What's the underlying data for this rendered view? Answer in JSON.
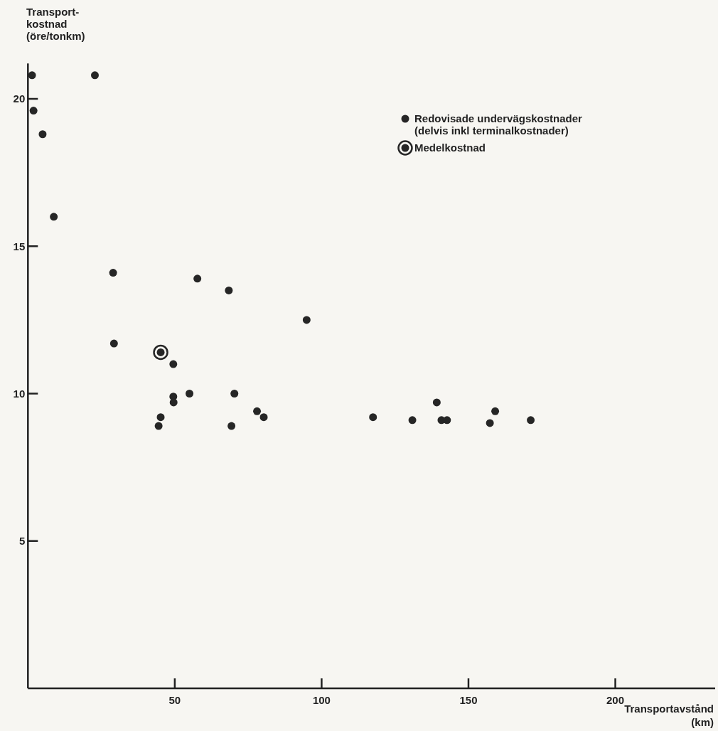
{
  "chart_data": {
    "type": "scatter",
    "ylabel": "Transport-\nkostnad\n(öre/tonkm)",
    "xlabel": "Transportavstånd\n(km)",
    "xlim": [
      0,
      234
    ],
    "ylim": [
      0,
      21.2
    ],
    "xticks": [
      50,
      100,
      150,
      200
    ],
    "yticks": [
      5,
      10,
      15,
      20
    ],
    "grid": false,
    "legend": "top right",
    "marker": "circle",
    "series": [
      {
        "name": "Redovisade undervägskostnader\n(delvis inkl terminalkostnader)",
        "color": "#262626",
        "x": [
          1.4,
          22.8,
          1.9,
          5.0,
          8.8,
          29.0,
          57.7,
          68.4,
          94.9,
          29.3,
          49.5,
          49.5,
          55.0,
          70.3,
          49.6,
          78.0,
          80.3,
          45.2,
          44.5,
          69.3,
          117.5,
          130.9,
          139.2,
          140.8,
          142.7,
          157.3,
          159.1,
          171.2
        ],
        "values": [
          20.8,
          20.8,
          19.6,
          18.8,
          16.0,
          14.1,
          13.9,
          13.5,
          12.5,
          11.7,
          11.0,
          9.9,
          10.0,
          10.0,
          9.7,
          9.4,
          9.2,
          9.2,
          8.9,
          8.9,
          9.2,
          9.1,
          9.7,
          9.1,
          9.1,
          9.0,
          9.4,
          9.1
        ]
      },
      {
        "name": "Medelkostnad",
        "color": "#262626",
        "x": [
          45.2
        ],
        "values": [
          11.4
        ]
      }
    ]
  }
}
